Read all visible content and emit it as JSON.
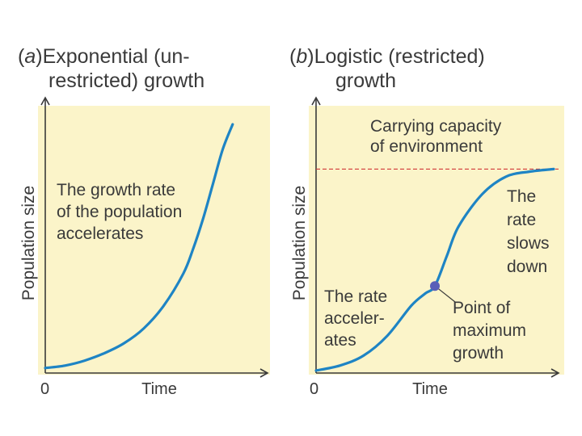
{
  "chart_data": [
    {
      "type": "line",
      "title_parts": [
        "(",
        "a",
        ")",
        "Exponential (un-"
      ],
      "title_line2": "restricted) growth",
      "xlabel": "Time",
      "ylabel": "Population size",
      "x_tick_labels": [
        "0"
      ],
      "annotation": [
        "The growth rate",
        "of the population",
        "accelerates"
      ],
      "xlim": [
        0,
        10
      ],
      "ylim": [
        0,
        10
      ],
      "series": [
        {
          "x": [
            0,
            1,
            2,
            3,
            4,
            5,
            6,
            7,
            7.5,
            8,
            8.5,
            9,
            9.5
          ],
          "y": [
            0.2,
            0.3,
            0.5,
            0.8,
            1.2,
            1.8,
            2.7,
            4.0,
            5.0,
            6.2,
            7.6,
            9.0,
            10.0
          ]
        }
      ],
      "line_color": "#1e84c4",
      "background_color": "#fbf4c9"
    },
    {
      "type": "line",
      "title_parts": [
        "(",
        "b",
        ")",
        "Logistic (restricted)"
      ],
      "title_line2": "growth",
      "xlabel": "Time",
      "ylabel": "Population size",
      "x_tick_labels": [
        "0"
      ],
      "carrying_capacity_label": [
        "Carrying capacity",
        "of environment"
      ],
      "carrying_capacity": 8.2,
      "accelerate_label": [
        "The rate",
        "acceler-",
        "ates"
      ],
      "slowdown_label": [
        "The",
        "rate",
        "slows",
        "down"
      ],
      "max_growth_label": [
        "Point of",
        "maximum",
        "growth"
      ],
      "max_growth_point": {
        "x": 5,
        "y": 3.5
      },
      "xlim": [
        0,
        10
      ],
      "ylim": [
        0,
        10
      ],
      "series": [
        {
          "x": [
            0,
            1,
            2,
            3,
            4,
            4.6,
            5,
            5.5,
            6,
            7,
            8,
            9,
            10
          ],
          "y": [
            0.1,
            0.3,
            0.7,
            1.5,
            2.7,
            3.2,
            3.5,
            4.7,
            5.9,
            7.2,
            7.9,
            8.1,
            8.2
          ]
        }
      ],
      "line_color": "#1e84c4",
      "point_color": "#5a5fb8",
      "capacity_line_color": "#d23a3a",
      "background_color": "#fbf4c9"
    }
  ]
}
